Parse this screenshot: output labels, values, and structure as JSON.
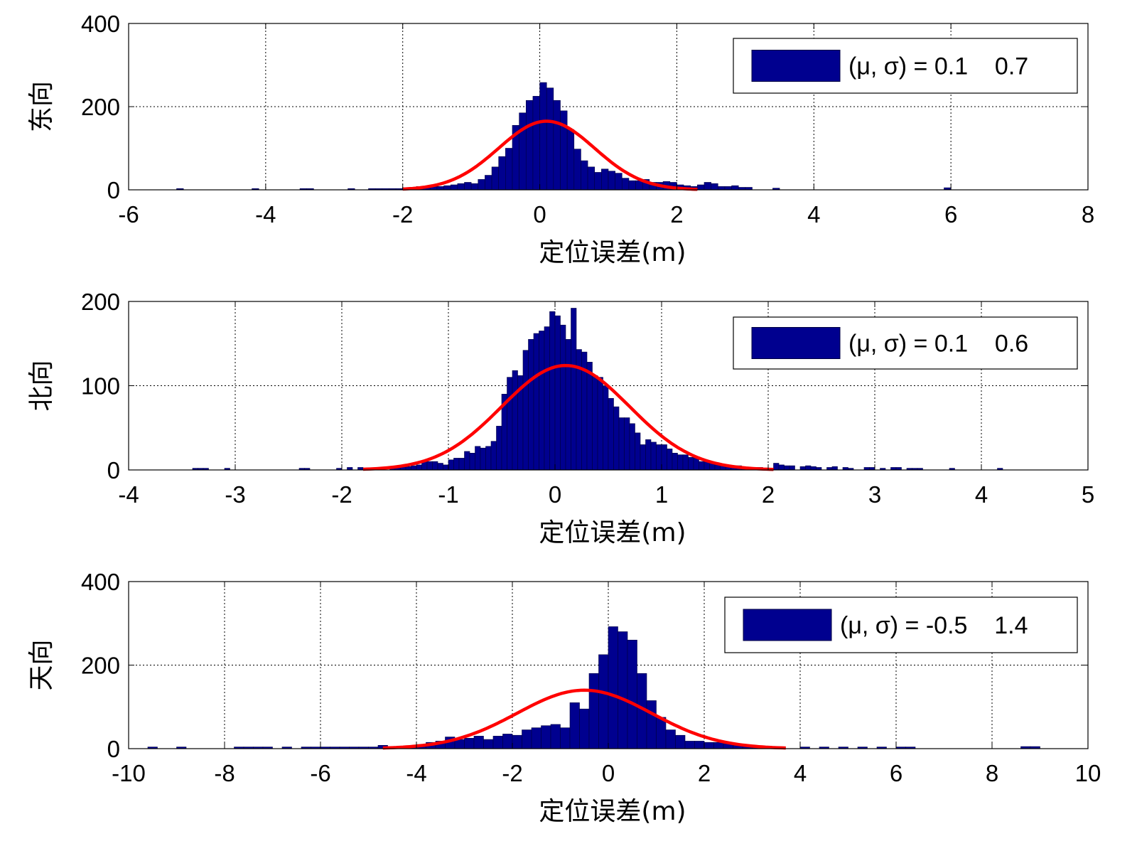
{
  "colors": {
    "bar": "#00008f",
    "bar_edge": "#000040",
    "fit": "#ff0000",
    "grid": "#000000",
    "axes": "#000000"
  },
  "chart_data": [
    {
      "type": "bar",
      "ylabel": "东向",
      "xlabel": "定位误差(m)",
      "xlim": [
        -6,
        8
      ],
      "ylim": [
        0,
        400
      ],
      "xticks": [
        -6,
        -4,
        -2,
        0,
        2,
        4,
        6,
        8
      ],
      "yticks": [
        0,
        200,
        400
      ],
      "grid": true,
      "legend_position": "top-right",
      "legend": "(μ, σ) = 0.1    0.7",
      "mu": 0.1,
      "sigma": 0.7,
      "fit_peak": 165,
      "fit_range": [
        -2.0,
        2.3
      ],
      "bin_width": 0.1,
      "bins": [
        [
          -5.3,
          3
        ],
        [
          -4.2,
          3
        ],
        [
          -3.5,
          3
        ],
        [
          -3.4,
          3
        ],
        [
          -2.8,
          3
        ],
        [
          -2.5,
          3
        ],
        [
          -2.4,
          3
        ],
        [
          -2.3,
          3
        ],
        [
          -2.2,
          3
        ],
        [
          -2.1,
          3
        ],
        [
          -2.0,
          5
        ],
        [
          -1.9,
          5
        ],
        [
          -1.8,
          8
        ],
        [
          -1.7,
          5
        ],
        [
          -1.6,
          8
        ],
        [
          -1.5,
          8
        ],
        [
          -1.4,
          10
        ],
        [
          -1.3,
          12
        ],
        [
          -1.2,
          15
        ],
        [
          -1.1,
          18
        ],
        [
          -1.0,
          15
        ],
        [
          -0.9,
          25
        ],
        [
          -0.8,
          35
        ],
        [
          -0.7,
          55
        ],
        [
          -0.6,
          80
        ],
        [
          -0.5,
          100
        ],
        [
          -0.4,
          155
        ],
        [
          -0.3,
          185
        ],
        [
          -0.2,
          215
        ],
        [
          -0.1,
          225
        ],
        [
          0.0,
          258
        ],
        [
          0.1,
          245
        ],
        [
          0.2,
          215
        ],
        [
          0.3,
          190
        ],
        [
          0.4,
          145
        ],
        [
          0.5,
          98
        ],
        [
          0.6,
          70
        ],
        [
          0.7,
          55
        ],
        [
          0.8,
          42
        ],
        [
          0.9,
          50
        ],
        [
          1.0,
          45
        ],
        [
          1.1,
          40
        ],
        [
          1.2,
          28
        ],
        [
          1.3,
          22
        ],
        [
          1.4,
          22
        ],
        [
          1.5,
          25
        ],
        [
          1.6,
          18
        ],
        [
          1.7,
          18
        ],
        [
          1.8,
          20
        ],
        [
          1.9,
          18
        ],
        [
          2.0,
          12
        ],
        [
          2.1,
          10
        ],
        [
          2.2,
          8
        ],
        [
          2.3,
          12
        ],
        [
          2.4,
          18
        ],
        [
          2.5,
          15
        ],
        [
          2.6,
          8
        ],
        [
          2.7,
          8
        ],
        [
          2.8,
          10
        ],
        [
          2.9,
          6
        ],
        [
          3.0,
          6
        ],
        [
          3.4,
          4
        ],
        [
          5.9,
          5
        ]
      ]
    },
    {
      "type": "bar",
      "ylabel": "北向",
      "xlabel": "定位误差(m)",
      "xlim": [
        -4,
        5
      ],
      "ylim": [
        0,
        200
      ],
      "xticks": [
        -4,
        -3,
        -2,
        -1,
        0,
        1,
        2,
        3,
        4,
        5
      ],
      "yticks": [
        0,
        100,
        200
      ],
      "grid": true,
      "legend_position": "top-right",
      "legend": "(μ, σ) = 0.1    0.6",
      "mu": 0.1,
      "sigma": 0.6,
      "fit_peak": 124,
      "fit_range": [
        -1.8,
        2.05
      ],
      "bin_width": 0.05,
      "bins": [
        [
          -3.4,
          2
        ],
        [
          -3.35,
          2
        ],
        [
          -3.3,
          2
        ],
        [
          -3.1,
          2
        ],
        [
          -2.4,
          2
        ],
        [
          -2.35,
          2
        ],
        [
          -2.05,
          2
        ],
        [
          -1.95,
          3
        ],
        [
          -1.85,
          3
        ],
        [
          -1.75,
          2
        ],
        [
          -1.65,
          3
        ],
        [
          -1.55,
          3
        ],
        [
          -1.5,
          4
        ],
        [
          -1.45,
          5
        ],
        [
          -1.4,
          4
        ],
        [
          -1.35,
          5
        ],
        [
          -1.3,
          6
        ],
        [
          -1.25,
          10
        ],
        [
          -1.2,
          10
        ],
        [
          -1.15,
          10
        ],
        [
          -1.1,
          8
        ],
        [
          -1.05,
          6
        ],
        [
          -1.0,
          12
        ],
        [
          -0.95,
          14
        ],
        [
          -0.9,
          14
        ],
        [
          -0.85,
          22
        ],
        [
          -0.8,
          20
        ],
        [
          -0.75,
          28
        ],
        [
          -0.7,
          26
        ],
        [
          -0.65,
          28
        ],
        [
          -0.6,
          34
        ],
        [
          -0.55,
          52
        ],
        [
          -0.5,
          90
        ],
        [
          -0.45,
          110
        ],
        [
          -0.4,
          118
        ],
        [
          -0.35,
          112
        ],
        [
          -0.3,
          142
        ],
        [
          -0.25,
          155
        ],
        [
          -0.2,
          162
        ],
        [
          -0.15,
          165
        ],
        [
          -0.1,
          170
        ],
        [
          -0.05,
          188
        ],
        [
          0.0,
          183
        ],
        [
          0.05,
          172
        ],
        [
          0.1,
          155
        ],
        [
          0.15,
          192
        ],
        [
          0.2,
          143
        ],
        [
          0.25,
          140
        ],
        [
          0.3,
          128
        ],
        [
          0.35,
          112
        ],
        [
          0.4,
          110
        ],
        [
          0.45,
          100
        ],
        [
          0.5,
          85
        ],
        [
          0.55,
          75
        ],
        [
          0.6,
          62
        ],
        [
          0.65,
          62
        ],
        [
          0.7,
          55
        ],
        [
          0.75,
          44
        ],
        [
          0.8,
          30
        ],
        [
          0.85,
          36
        ],
        [
          0.9,
          33
        ],
        [
          0.95,
          30
        ],
        [
          1.0,
          30
        ],
        [
          1.05,
          25
        ],
        [
          1.1,
          20
        ],
        [
          1.15,
          18
        ],
        [
          1.2,
          18
        ],
        [
          1.25,
          15
        ],
        [
          1.3,
          15
        ],
        [
          1.35,
          10
        ],
        [
          1.4,
          10
        ],
        [
          1.45,
          8
        ],
        [
          1.5,
          8
        ],
        [
          1.55,
          6
        ],
        [
          1.6,
          5
        ],
        [
          1.65,
          5
        ],
        [
          1.7,
          5
        ],
        [
          1.75,
          3
        ],
        [
          1.8,
          3
        ],
        [
          1.85,
          3
        ],
        [
          1.9,
          3
        ],
        [
          1.95,
          2
        ],
        [
          2.05,
          8
        ],
        [
          2.1,
          6
        ],
        [
          2.15,
          5
        ],
        [
          2.2,
          5
        ],
        [
          2.3,
          4
        ],
        [
          2.35,
          5
        ],
        [
          2.4,
          4
        ],
        [
          2.45,
          3
        ],
        [
          2.55,
          3
        ],
        [
          2.6,
          4
        ],
        [
          2.7,
          3
        ],
        [
          2.75,
          2
        ],
        [
          2.9,
          3
        ],
        [
          2.95,
          3
        ],
        [
          3.05,
          2
        ],
        [
          3.15,
          3
        ],
        [
          3.2,
          3
        ],
        [
          3.3,
          2
        ],
        [
          3.35,
          2
        ],
        [
          3.4,
          2
        ],
        [
          3.7,
          2
        ],
        [
          4.15,
          2
        ]
      ]
    },
    {
      "type": "bar",
      "ylabel": "天向",
      "xlabel": "定位误差(m)",
      "xlim": [
        -10,
        10
      ],
      "ylim": [
        0,
        400
      ],
      "xticks": [
        -10,
        -8,
        -6,
        -4,
        -2,
        0,
        2,
        4,
        6,
        8,
        10
      ],
      "yticks": [
        0,
        200,
        400
      ],
      "grid": true,
      "legend_position": "top-right",
      "legend": "(μ, σ) = -0.5    1.4",
      "mu": -0.5,
      "sigma": 1.4,
      "fit_peak": 140,
      "fit_range": [
        -4.7,
        3.7
      ],
      "bin_width": 0.2,
      "bins": [
        [
          -9.6,
          4
        ],
        [
          -9.0,
          4
        ],
        [
          -7.8,
          4
        ],
        [
          -7.6,
          4
        ],
        [
          -7.4,
          4
        ],
        [
          -7.2,
          4
        ],
        [
          -6.8,
          4
        ],
        [
          -6.4,
          4
        ],
        [
          -6.2,
          4
        ],
        [
          -6.0,
          4
        ],
        [
          -5.8,
          4
        ],
        [
          -5.6,
          4
        ],
        [
          -5.4,
          4
        ],
        [
          -5.2,
          4
        ],
        [
          -5.0,
          4
        ],
        [
          -4.8,
          8
        ],
        [
          -4.6,
          5
        ],
        [
          -4.4,
          6
        ],
        [
          -4.2,
          6
        ],
        [
          -4.0,
          10
        ],
        [
          -3.8,
          15
        ],
        [
          -3.6,
          18
        ],
        [
          -3.4,
          28
        ],
        [
          -3.2,
          22
        ],
        [
          -3.0,
          25
        ],
        [
          -2.8,
          30
        ],
        [
          -2.6,
          22
        ],
        [
          -2.4,
          30
        ],
        [
          -2.2,
          35
        ],
        [
          -2.0,
          32
        ],
        [
          -1.8,
          45
        ],
        [
          -1.6,
          50
        ],
        [
          -1.4,
          55
        ],
        [
          -1.2,
          58
        ],
        [
          -1.0,
          50
        ],
        [
          -0.8,
          110
        ],
        [
          -0.6,
          95
        ],
        [
          -0.4,
          180
        ],
        [
          -0.2,
          225
        ],
        [
          0.0,
          292
        ],
        [
          0.2,
          280
        ],
        [
          0.4,
          260
        ],
        [
          0.6,
          180
        ],
        [
          0.8,
          115
        ],
        [
          1.0,
          75
        ],
        [
          1.2,
          45
        ],
        [
          1.4,
          32
        ],
        [
          1.6,
          18
        ],
        [
          1.8,
          18
        ],
        [
          2.0,
          15
        ],
        [
          2.2,
          15
        ],
        [
          2.4,
          12
        ],
        [
          2.6,
          8
        ],
        [
          2.8,
          6
        ],
        [
          3.0,
          4
        ],
        [
          3.2,
          4
        ],
        [
          3.4,
          4
        ],
        [
          4.0,
          4
        ],
        [
          4.4,
          4
        ],
        [
          4.8,
          4
        ],
        [
          5.2,
          4
        ],
        [
          5.6,
          4
        ],
        [
          6.0,
          4
        ],
        [
          6.2,
          4
        ],
        [
          8.6,
          5
        ],
        [
          8.8,
          5
        ]
      ]
    }
  ]
}
